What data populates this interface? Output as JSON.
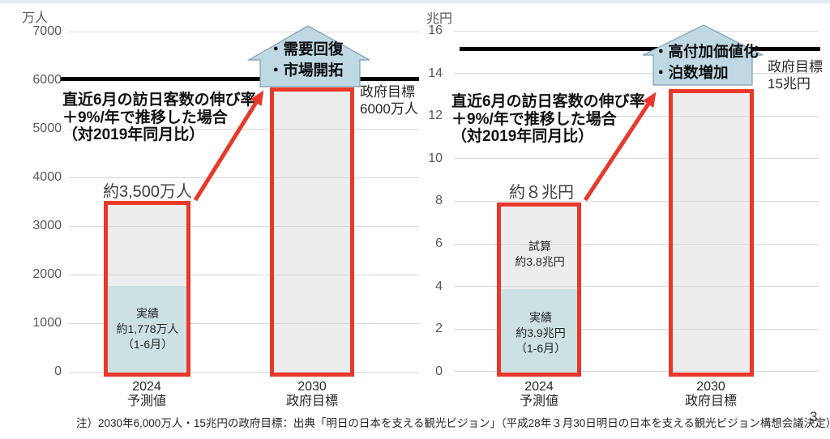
{
  "colors": {
    "red_accent": "#E9382B",
    "actual_fill_teal": "#CBE1E3",
    "bar_fill_gray": "#EDEDED",
    "arrow_box_fill": "#BED8E4",
    "arrow_box_border": "#7F9CB4",
    "target_line": "#000000",
    "gridline": "#D9D9D9"
  },
  "charts": [
    {
      "unit": "万人",
      "yticks": [
        "7000",
        "6000",
        "5000",
        "4000",
        "3000",
        "2000",
        "1000",
        "0"
      ],
      "growth_note": [
        "直近6月の訪日客数の伸び率",
        "＋9%/年で推移した場合",
        "（対2019年同月比）"
      ],
      "arrow_box": [
        "・需要回復",
        "・市場開拓"
      ],
      "target_label": [
        "政府目標",
        "6000万人"
      ],
      "bars": [
        {
          "total_label": "約3,500万人",
          "x_label": [
            "2024",
            "予測値"
          ],
          "actual_label": [
            "実績",
            "約1,778万人",
            "（1-6月）"
          ]
        },
        {
          "x_label": [
            "2030",
            "政府目標"
          ]
        }
      ]
    },
    {
      "unit": "兆円",
      "yticks": [
        "16",
        "14",
        "12",
        "10",
        "8",
        "6",
        "4",
        "2",
        "0"
      ],
      "growth_note": [
        "直近6月の訪日客数の伸び率",
        "＋9%/年で推移した場合",
        "（対2019年同月比）"
      ],
      "arrow_box": [
        "・高付加価値化",
        "・泊数増加"
      ],
      "target_label": [
        "政府目標",
        "15兆円"
      ],
      "bars": [
        {
          "total_label": "約８兆円",
          "x_label": [
            "2024",
            "予測値"
          ],
          "estimate_label": [
            "試算",
            "約3.8兆円"
          ],
          "actual_label": [
            "実績",
            "約3.9兆円",
            "（1-6月）"
          ]
        },
        {
          "x_label": [
            "2030",
            "政府目標"
          ]
        }
      ]
    }
  ],
  "footer": {
    "note": "注）2030年6,000万人・15兆円の政府目標：出典「明日の日本を支える観光ビジョン」（平成28年３月30日明日の日本を支える観光ビジョン構想会議決定）",
    "page_number": "3"
  },
  "chart_data": [
    {
      "type": "bar",
      "title": "",
      "unit": "万人",
      "ylabel": "万人",
      "ylim": [
        0,
        7000
      ],
      "yticks": [
        0,
        1000,
        2000,
        3000,
        4000,
        5000,
        6000,
        7000
      ],
      "grid": true,
      "legend": false,
      "bars": [
        {
          "category": "2024 予測値",
          "total": 3500,
          "total_label": "約3,500万人",
          "segments": [
            {
              "label": "実績 約1,778万人（1-6月）",
              "value": 1778
            },
            {
              "label": "",
              "value": 1722
            }
          ]
        },
        {
          "category": "2030 政府目標",
          "value": 6000
        }
      ],
      "target_line": {
        "value": 6000,
        "label": "政府目標 6000万人"
      },
      "annotations": [
        "直近6月の訪日客数の伸び率＋9%/年で推移した場合（対2019年同月比）",
        "・需要回復 ・市場開拓"
      ]
    },
    {
      "type": "bar",
      "title": "",
      "unit": "兆円",
      "ylabel": "兆円",
      "ylim": [
        0,
        16
      ],
      "yticks": [
        0,
        2,
        4,
        6,
        8,
        10,
        12,
        14,
        16
      ],
      "grid": true,
      "legend": false,
      "bars": [
        {
          "category": "2024 予測値",
          "total": 8,
          "total_label": "約８兆円",
          "segments": [
            {
              "label": "実績 約3.9兆円（1-6月）",
              "value": 3.9
            },
            {
              "label": "試算 約3.8兆円",
              "value": 3.8
            }
          ]
        },
        {
          "category": "2030 政府目標",
          "value": 15
        }
      ],
      "target_line": {
        "value": 15,
        "label": "政府目標 15兆円"
      },
      "annotations": [
        "直近6月の訪日客数の伸び率＋9%/年で推移した場合（対2019年同月比）",
        "・高付加価値化 ・泊数増加"
      ]
    }
  ]
}
